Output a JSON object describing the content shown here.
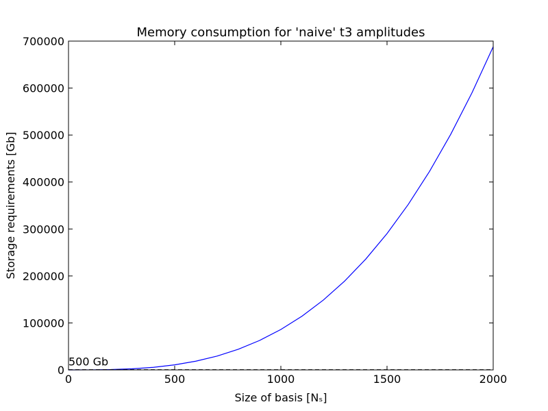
{
  "chart_data": {
    "type": "line",
    "title": "Memory consumption for 'naive' t3 amplitudes",
    "xlabel": "Size of basis [Nₛ]",
    "ylabel": "Storage requirements [Gb]",
    "x": [
      0,
      100,
      200,
      300,
      400,
      500,
      600,
      700,
      800,
      900,
      1000,
      1100,
      1200,
      1300,
      1400,
      1500,
      1600,
      1700,
      1800,
      1900,
      2000
    ],
    "series": [
      {
        "color": "#0000ff",
        "values": [
          0,
          86,
          688,
          2322,
          5504,
          10750,
          18576,
          29498,
          44032,
          62694,
          86000,
          114466,
          148608,
          188942,
          235984,
          290250,
          352256,
          422518,
          501552,
          589874,
          688000
        ]
      }
    ],
    "reference_line": {
      "value": 500,
      "label": "500 Gb",
      "color": "#000000"
    },
    "xlim": [
      0,
      2000
    ],
    "ylim": [
      0,
      700000
    ],
    "xticks": [
      0,
      500,
      1000,
      1500,
      2000
    ],
    "yticks": [
      0,
      100000,
      200000,
      300000,
      400000,
      500000,
      600000,
      700000
    ]
  }
}
